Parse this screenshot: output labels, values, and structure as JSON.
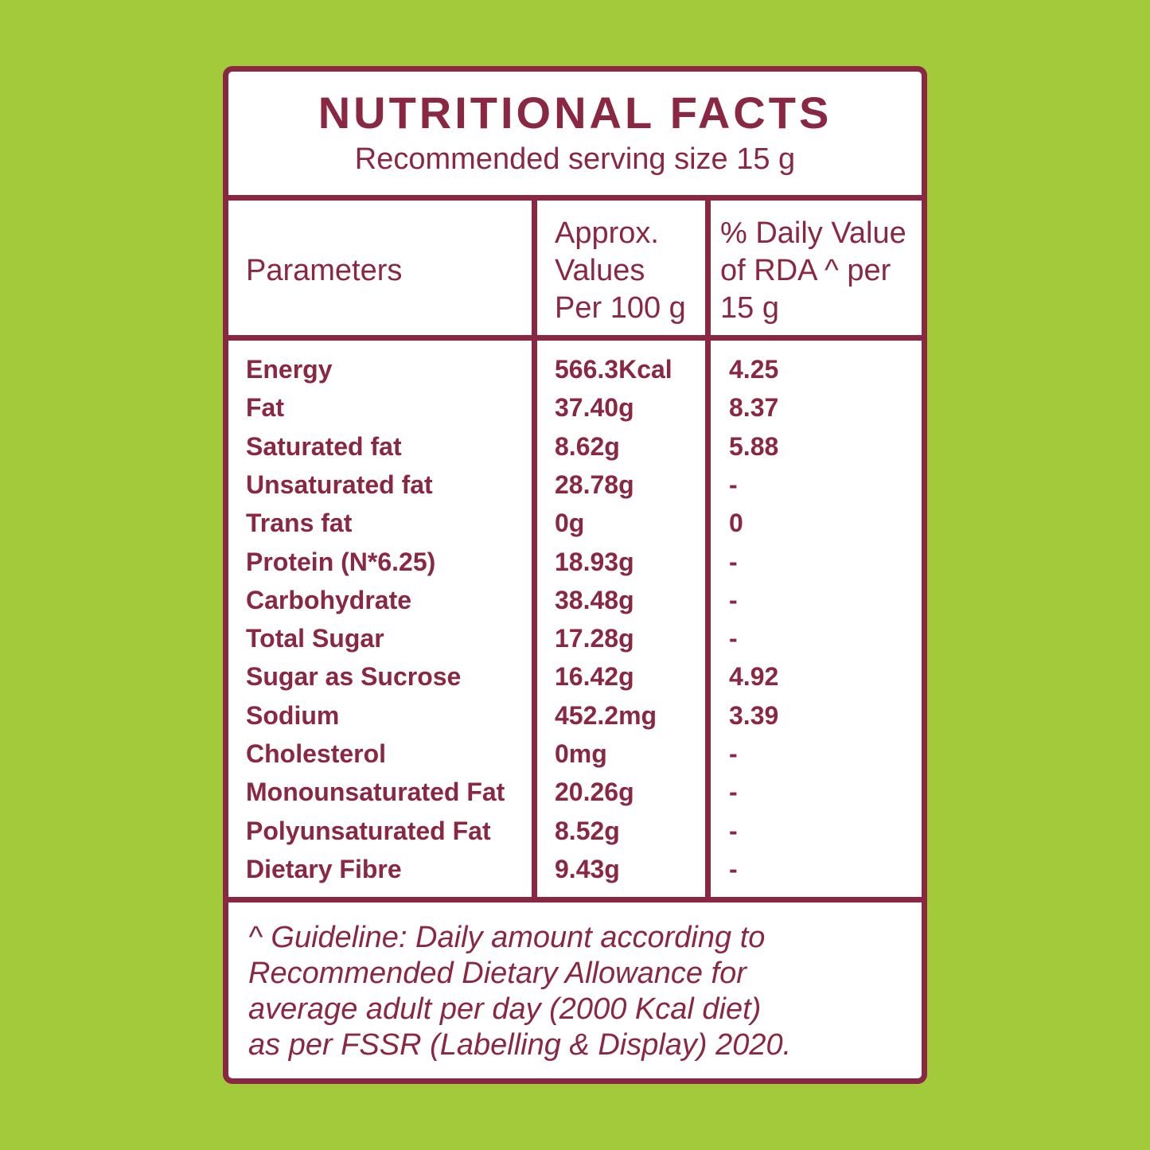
{
  "header": {
    "title": "NUTRITIONAL FACTS",
    "subtitle": "Recommended serving size 15 g"
  },
  "table": {
    "columns": [
      [
        "Parameters"
      ],
      [
        "Approx.",
        "Values",
        "Per 100 g"
      ],
      [
        "% Daily Value",
        "of RDA ^ per",
        "15 g"
      ]
    ],
    "rows": [
      [
        "Energy",
        "566.3Kcal",
        "4.25"
      ],
      [
        "Fat",
        "37.40g",
        "8.37"
      ],
      [
        "Saturated fat",
        "8.62g",
        "5.88"
      ],
      [
        "Unsaturated fat",
        "28.78g",
        "-"
      ],
      [
        "Trans fat",
        "0g",
        "0"
      ],
      [
        "Protein (N*6.25)",
        "18.93g",
        "-"
      ],
      [
        "Carbohydrate",
        "38.48g",
        "-"
      ],
      [
        "Total Sugar",
        "17.28g",
        "-"
      ],
      [
        "Sugar as Sucrose",
        "16.42g",
        "4.92"
      ],
      [
        "Sodium",
        "452.2mg",
        "3.39"
      ],
      [
        "Cholesterol",
        "0mg",
        "-"
      ],
      [
        "Monounsaturated Fat",
        "20.26g",
        "-"
      ],
      [
        "Polyunsaturated Fat",
        "8.52g",
        "-"
      ],
      [
        "Dietary Fibre",
        "9.43g",
        "-"
      ]
    ]
  },
  "footnote": [
    "^ Guideline: Daily amount according to",
    "Recommended Dietary Allowance for",
    "average adult per day (2000 Kcal diet)",
    "as per FSSR (Labelling & Display) 2020."
  ]
}
